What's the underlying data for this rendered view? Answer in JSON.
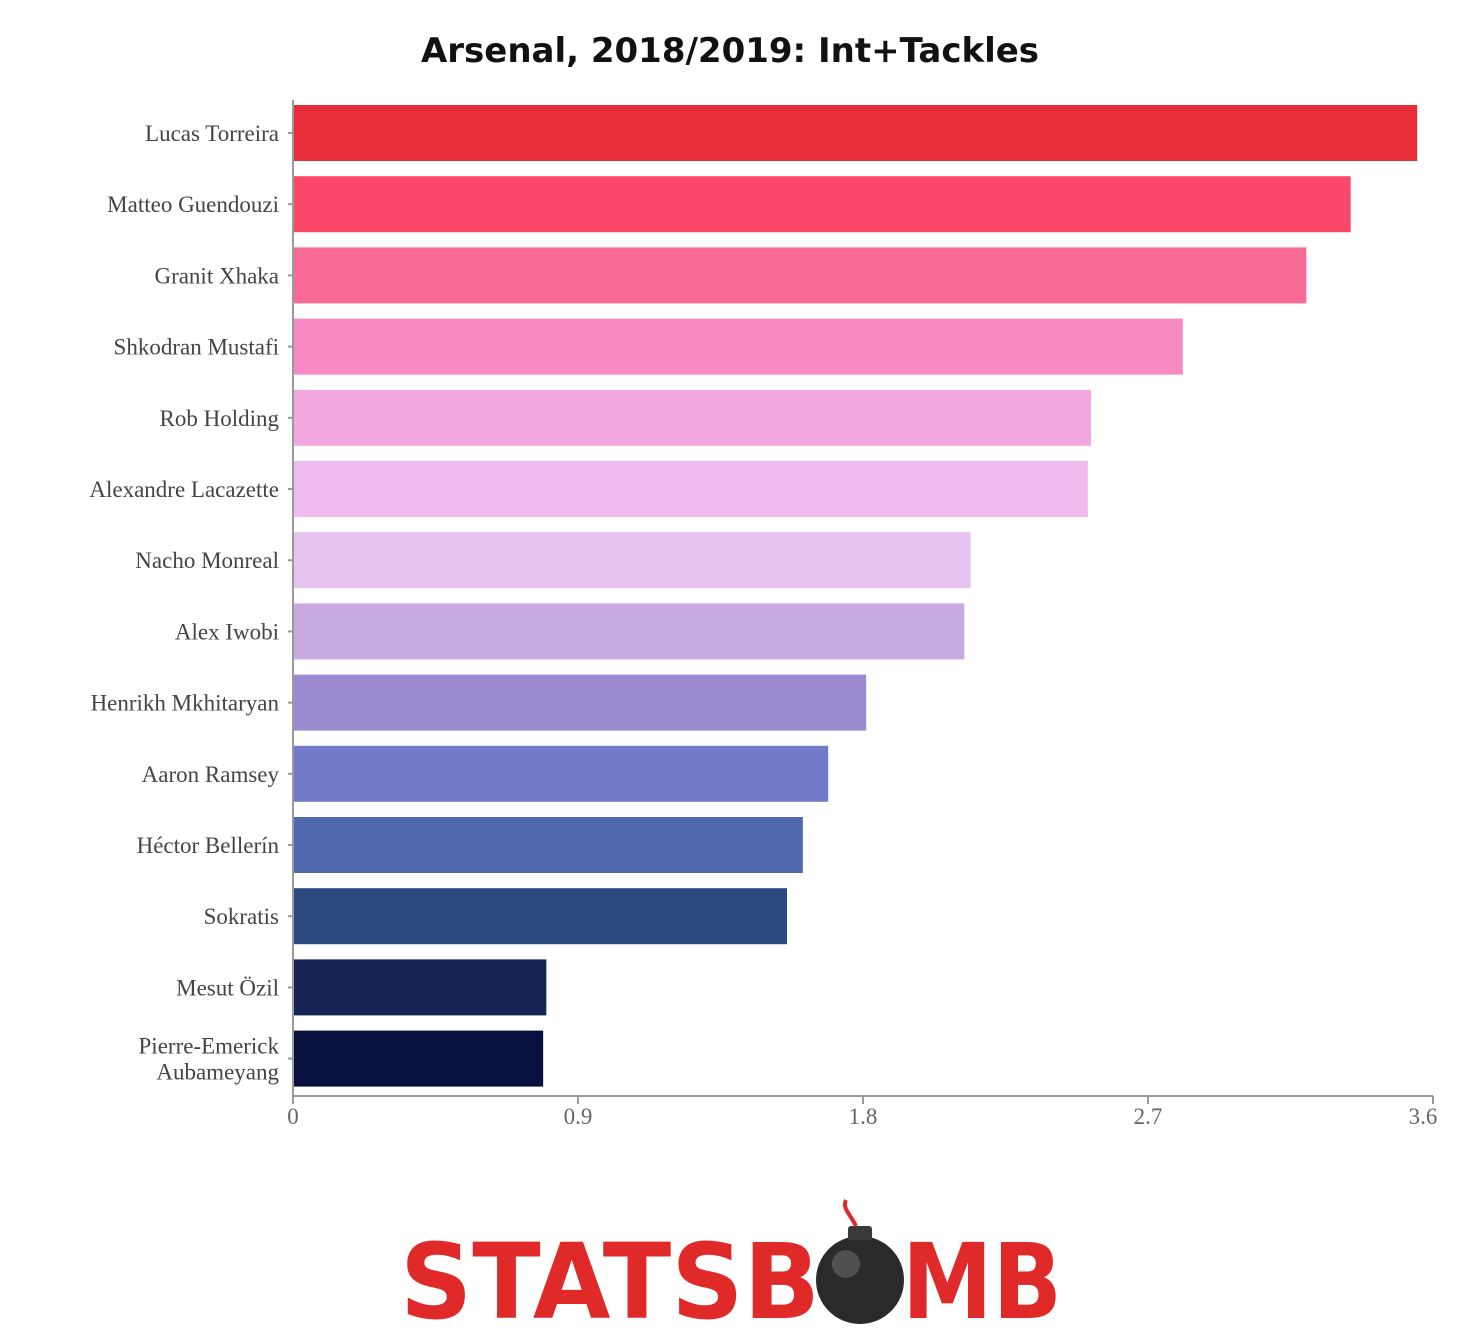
{
  "chart_data": {
    "type": "bar",
    "orientation": "horizontal",
    "title": "Arsenal, 2018/2019: Int+Tackles",
    "xlabel": "",
    "ylabel": "",
    "xlim": [
      0,
      3.6
    ],
    "ticks": [
      "0",
      "0.9",
      "1.8",
      "2.7",
      "3.6"
    ],
    "tick_values": [
      0,
      0.9,
      1.8,
      2.7,
      3.6
    ],
    "grid": false,
    "categories": [
      [
        "Lucas Torreira"
      ],
      [
        "Matteo Guendouzi"
      ],
      [
        "Granit Xhaka"
      ],
      [
        "Shkodran Mustafi"
      ],
      [
        "Rob Holding"
      ],
      [
        "Alexandre Lacazette"
      ],
      [
        "Nacho Monreal"
      ],
      [
        "Alex Iwobi"
      ],
      [
        "Henrikh Mkhitaryan"
      ],
      [
        "Aaron Ramsey"
      ],
      [
        "Héctor Bellerín"
      ],
      [
        "Sokratis"
      ],
      [
        "Mesut Özil"
      ],
      [
        "Pierre-Emerick",
        "Aubameyang"
      ]
    ],
    "values": [
      3.55,
      3.34,
      3.2,
      2.81,
      2.52,
      2.51,
      2.14,
      2.12,
      1.81,
      1.69,
      1.61,
      1.56,
      0.8,
      0.79
    ],
    "colors": [
      "#e72d37",
      "#fb4768",
      "#fa6a96",
      "#f58ac3",
      "#f2a7df",
      "#efbaed",
      "#e6c3ee",
      "#c8aae3",
      "#9c8bd0",
      "#717bc8",
      "#5068ad",
      "#2b4b80",
      "#142455",
      "#07103f"
    ]
  },
  "logo": {
    "text_left": "STATSB",
    "text_right": "MB",
    "bomb_icon": "bomb-icon",
    "color": "#e02a2a"
  }
}
